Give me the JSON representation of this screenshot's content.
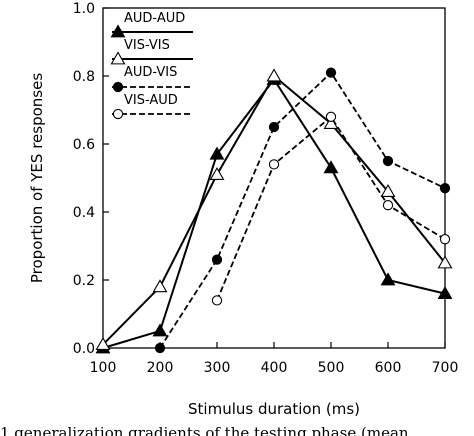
{
  "chart_data": {
    "type": "line",
    "title": "",
    "xlabel": "Stimulus duration (ms)",
    "ylabel": "Proportion of YES responses",
    "xlim": [
      100,
      700
    ],
    "ylim": [
      0.0,
      1.0
    ],
    "x_ticks": [
      "100",
      "200",
      "300",
      "400",
      "500",
      "600",
      "700"
    ],
    "y_ticks": [
      "0.0",
      "0.2",
      "0.4",
      "0.6",
      "0.8",
      "1.0"
    ],
    "grid": false,
    "legend_position": "top-left",
    "series": [
      {
        "name": "AUD-AUD",
        "line": "solid",
        "marker": "filled-triangle",
        "x": [
          100,
          200,
          300,
          400,
          500,
          600,
          700
        ],
        "y": [
          0.0,
          0.05,
          0.57,
          0.79,
          0.53,
          0.2,
          0.16
        ]
      },
      {
        "name": "VIS-VIS",
        "line": "solid",
        "marker": "open-triangle",
        "x": [
          100,
          200,
          300,
          400,
          500,
          600,
          700
        ],
        "y": [
          0.01,
          0.18,
          0.51,
          0.8,
          0.66,
          0.46,
          0.25
        ]
      },
      {
        "name": "AUD-VIS",
        "line": "dashed",
        "marker": "filled-circle",
        "x": [
          200,
          300,
          400,
          500,
          600,
          700
        ],
        "y": [
          0.0,
          0.26,
          0.65,
          0.81,
          0.55,
          0.47
        ]
      },
      {
        "name": "VIS-AUD",
        "line": "dashed",
        "marker": "open-circle",
        "x": [
          300,
          400,
          500,
          600,
          700
        ],
        "y": [
          0.14,
          0.54,
          0.68,
          0.42,
          0.32
        ]
      }
    ]
  },
  "caption_fragment": "1 generalization gradients of the testing phase (mean"
}
